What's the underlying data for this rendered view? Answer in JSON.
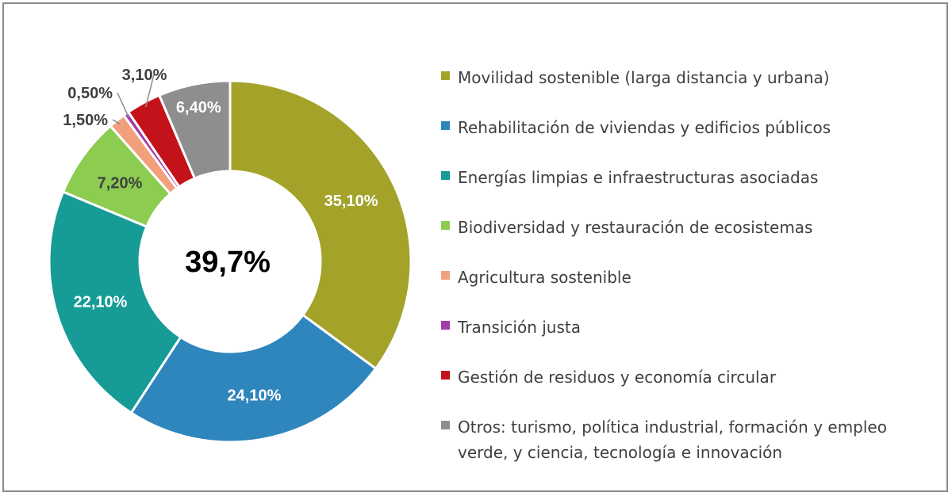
{
  "chart_data": {
    "type": "donut",
    "center_label": "39,7%",
    "series": [
      {
        "name": "Movilidad sostenible (larga distancia y urbana)",
        "value": 35.1,
        "label": "35,10%",
        "color": "#a3a32a",
        "label_color": "#ffffff"
      },
      {
        "name": "Rehabilitación de viviendas y edificios públicos",
        "value": 24.1,
        "label": "24,10%",
        "color": "#2e86bd",
        "label_color": "#ffffff"
      },
      {
        "name": "Energías limpias e infraestructuras asociadas",
        "value": 22.1,
        "label": "22,10%",
        "color": "#169b97",
        "label_color": "#ffffff"
      },
      {
        "name": "Biodiversidad y restauración de ecosistemas",
        "value": 7.2,
        "label": "7,20%",
        "color": "#8ccc50",
        "label_color": "#404040"
      },
      {
        "name": "Agricultura sostenible",
        "value": 1.5,
        "label": "1,50%",
        "color": "#f2a07c",
        "label_color": "#404040"
      },
      {
        "name": "Transición justa",
        "value": 0.5,
        "label": "0,50%",
        "color": "#a33ca8",
        "label_color": "#404040"
      },
      {
        "name": "Gestión de residuos y economía circular",
        "value": 3.1,
        "label": "3,10%",
        "color": "#c4121a",
        "label_color": "#404040"
      },
      {
        "name": "Otros: turismo, política industrial, formación y empleo verde, y ciencia, tecnología e innovación",
        "value": 6.4,
        "label": "6,40%",
        "color": "#8e8e8e",
        "label_color": "#ffffff"
      }
    ],
    "legend_position": "right"
  }
}
